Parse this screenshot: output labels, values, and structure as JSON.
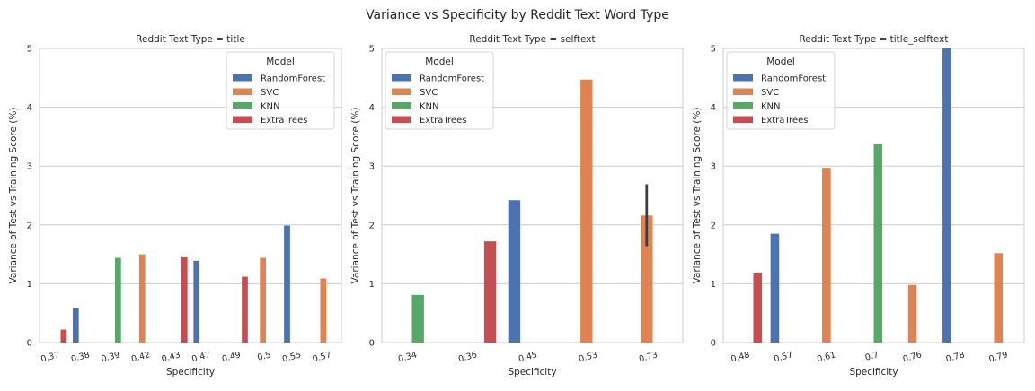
{
  "figure": {
    "title": "Variance vs Specificity by Reddit Text Word Type"
  },
  "legend": {
    "title": "Model",
    "entries": [
      {
        "name": "RandomForest",
        "color": "#4C72B0"
      },
      {
        "name": "SVC",
        "color": "#DD8452"
      },
      {
        "name": "KNN",
        "color": "#55A868"
      },
      {
        "name": "ExtraTrees",
        "color": "#C44E52"
      }
    ]
  },
  "chart_data": [
    {
      "type": "bar",
      "title": "Reddit Text Type = title",
      "xlabel": "Specificity",
      "ylabel": "Variance of Test vs Training Score (%)",
      "ylim": [
        0,
        5
      ],
      "yticks": [
        0,
        1,
        2,
        3,
        4,
        5
      ],
      "grid": true,
      "legend_position": "top-right",
      "categories": [
        "0.37",
        "0.38",
        "0.39",
        "0.42",
        "0.43",
        "0.47",
        "0.49",
        "0.5",
        "0.55",
        "0.57"
      ],
      "series": [
        {
          "name": "RandomForest",
          "values": [
            null,
            0.58,
            null,
            null,
            null,
            1.39,
            null,
            null,
            1.99,
            null
          ]
        },
        {
          "name": "SVC",
          "values": [
            null,
            null,
            null,
            1.5,
            null,
            null,
            null,
            1.44,
            null,
            1.09
          ]
        },
        {
          "name": "KNN",
          "values": [
            null,
            null,
            1.44,
            null,
            null,
            null,
            null,
            null,
            null,
            null
          ]
        },
        {
          "name": "ExtraTrees",
          "values": [
            0.22,
            null,
            null,
            null,
            1.45,
            null,
            1.12,
            null,
            null,
            null
          ]
        }
      ],
      "error_bars": []
    },
    {
      "type": "bar",
      "title": "Reddit Text Type = selftext",
      "xlabel": "Specificity",
      "ylabel": "Variance of Test vs Training Score (%)",
      "ylim": [
        0,
        5
      ],
      "yticks": [
        0,
        1,
        2,
        3,
        4,
        5
      ],
      "grid": true,
      "legend_position": "top-left",
      "categories": [
        "0.34",
        "0.36",
        "0.45",
        "0.53",
        "0.73"
      ],
      "series": [
        {
          "name": "RandomForest",
          "values": [
            null,
            null,
            2.42,
            null,
            null
          ]
        },
        {
          "name": "SVC",
          "values": [
            null,
            null,
            null,
            4.47,
            2.16
          ]
        },
        {
          "name": "KNN",
          "values": [
            0.81,
            null,
            null,
            null,
            null
          ]
        },
        {
          "name": "ExtraTrees",
          "values": [
            null,
            1.72,
            null,
            null,
            null
          ]
        }
      ],
      "error_bars": [
        {
          "category": "0.73",
          "series": "SVC",
          "low": 1.64,
          "high": 2.69
        }
      ]
    },
    {
      "type": "bar",
      "title": "Reddit Text Type = title_selftext",
      "xlabel": "Specificity",
      "ylabel": "Variance of Test vs Training Score (%)",
      "ylim": [
        0,
        5
      ],
      "yticks": [
        0,
        1,
        2,
        3,
        4,
        5
      ],
      "grid": true,
      "legend_position": "top-left",
      "categories": [
        "0.48",
        "0.57",
        "0.61",
        "0.7",
        "0.76",
        "0.78",
        "0.79"
      ],
      "series": [
        {
          "name": "RandomForest",
          "values": [
            null,
            1.85,
            null,
            null,
            null,
            5.0,
            null
          ]
        },
        {
          "name": "SVC",
          "values": [
            null,
            null,
            2.97,
            null,
            0.98,
            null,
            1.52
          ]
        },
        {
          "name": "KNN",
          "values": [
            null,
            null,
            null,
            3.37,
            null,
            null,
            null
          ]
        },
        {
          "name": "ExtraTrees",
          "values": [
            1.19,
            null,
            null,
            null,
            null,
            null,
            null
          ]
        }
      ],
      "error_bars": []
    }
  ]
}
